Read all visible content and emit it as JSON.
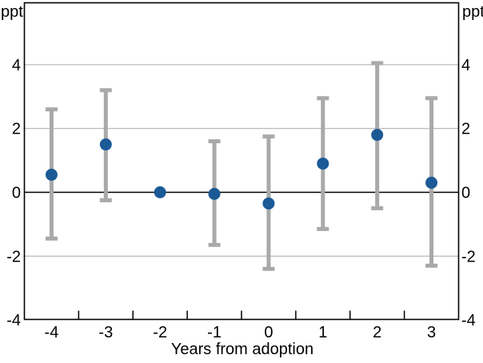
{
  "labels": {
    "unit_top_left": "ppt",
    "unit_top_right": "ppt",
    "x_axis_title": "Years from adoption"
  },
  "axes": {
    "y_tick_values": [
      4,
      2,
      0,
      -2,
      -4
    ],
    "y_tick_labels": [
      "4",
      "2",
      "0",
      "-2",
      "-4"
    ],
    "gridline_values": [
      4,
      2,
      -2
    ],
    "zero_line_value": 0,
    "x_tick_labels": [
      "-4",
      "-3",
      "-2",
      "-1",
      "0",
      "1",
      "2",
      "3"
    ]
  },
  "chart_data": {
    "type": "scatter",
    "subtype": "point-estimates-with-error-bars",
    "title": "",
    "xlabel": "Years from adoption",
    "ylabel": "ppt",
    "x": [
      -4,
      -3,
      -2,
      -1,
      0,
      1,
      2,
      3
    ],
    "series": [
      {
        "name": "point-estimate",
        "values": [
          0.55,
          1.5,
          0,
          -0.05,
          -0.35,
          0.9,
          1.8,
          0.3
        ]
      },
      {
        "name": "ci-lower",
        "values": [
          -1.45,
          -0.25,
          null,
          -1.65,
          -2.4,
          -1.15,
          -0.5,
          -2.3
        ]
      },
      {
        "name": "ci-upper",
        "values": [
          2.6,
          3.2,
          null,
          1.6,
          1.75,
          2.95,
          4.05,
          2.95
        ]
      }
    ],
    "ylim": [
      -4,
      6
    ],
    "yticks": [
      -4,
      -2,
      0,
      2,
      4
    ],
    "grid": "horizontal",
    "zero_line": true,
    "legend_position": "none"
  },
  "colors": {
    "point": "#1b5a96",
    "error_bar": "#a9a9a9",
    "gridline": "#b3b3b3",
    "axis": "#000000",
    "background": "#ffffff"
  }
}
